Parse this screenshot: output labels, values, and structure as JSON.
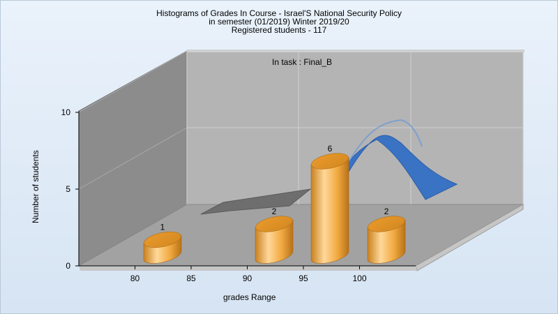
{
  "chart_data": {
    "type": "bar",
    "title_lines": [
      "Histograms of Grades  In Course - Israel'S National Security Policy",
      "in semester  (01/2019) Winter 2019/20",
      "Registered students - 117"
    ],
    "annotation": "In task : Final_B",
    "xlabel": "grades Range",
    "ylabel": "Number of students",
    "x_ticks": [
      "80",
      "85",
      "90",
      "95",
      "100"
    ],
    "y_ticks": [
      "0",
      "5",
      "10"
    ],
    "ylim": [
      0,
      10
    ],
    "grid": true,
    "categories": [
      "80",
      "90",
      "95",
      "100"
    ],
    "values": [
      1,
      2,
      6,
      2
    ],
    "data_labels": [
      "1",
      "2",
      "6",
      "2"
    ],
    "colors": {
      "bar": "#f0a63c",
      "curve": "#3a73c4",
      "back_wall": "#b4b4b4",
      "side_wall": "#8c8c8c",
      "floor": "#a2a2a2"
    }
  }
}
